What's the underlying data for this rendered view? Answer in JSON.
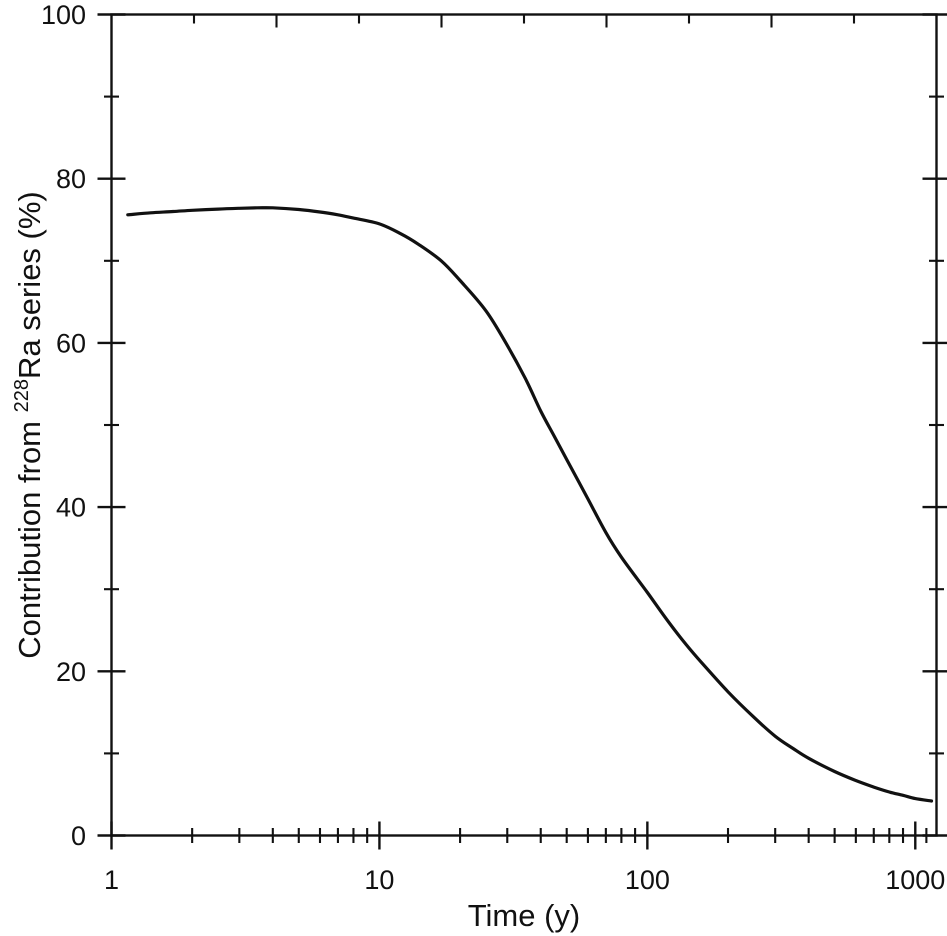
{
  "figure": {
    "background": "#ffffff",
    "ink_color": "#111111"
  },
  "chart_data": {
    "type": "line",
    "title": "",
    "xlabel": "Time (y)",
    "ylabel_parts": {
      "prefix": "Contribution from ",
      "superscript": "228",
      "suffix": "Ra series (%)"
    },
    "x_scale": "log",
    "y_scale": "linear",
    "xlim": [
      1,
      1200
    ],
    "ylim": [
      0,
      100
    ],
    "grid": false,
    "legend_position": "none",
    "x_major_ticks": [
      {
        "value": 1,
        "label": "1"
      },
      {
        "value": 10,
        "label": "10"
      },
      {
        "value": 100,
        "label": "100"
      },
      {
        "value": 1000,
        "label": "1000"
      }
    ],
    "x_minor_ticks": [
      2,
      3,
      4,
      5,
      6,
      7,
      8,
      9,
      20,
      30,
      40,
      50,
      60,
      70,
      80,
      90,
      200,
      300,
      400,
      500,
      600,
      700,
      800,
      900,
      1100
    ],
    "y_major_ticks": [
      {
        "value": 0,
        "label": "0"
      },
      {
        "value": 20,
        "label": "20"
      },
      {
        "value": 40,
        "label": "40"
      },
      {
        "value": 60,
        "label": "60"
      },
      {
        "value": 80,
        "label": "80"
      },
      {
        "value": 100,
        "label": "100"
      }
    ],
    "y_minor_ticks": [
      10,
      30,
      50,
      70,
      90
    ],
    "top_axis": {
      "evenly_spaced_tick_count": 9,
      "style": "alternating-long-short"
    },
    "right_axis": {
      "mirrors_left_ticks": true,
      "labels": false
    },
    "series": [
      {
        "name": "228Ra series contribution",
        "color": "#111111",
        "line_width": 3.2,
        "points": [
          [
            1.15,
            75.6
          ],
          [
            1.4,
            75.85
          ],
          [
            1.7,
            76.0
          ],
          [
            2,
            76.15
          ],
          [
            2.5,
            76.3
          ],
          [
            3,
            76.4
          ],
          [
            3.5,
            76.45
          ],
          [
            4,
            76.45
          ],
          [
            5,
            76.25
          ],
          [
            6,
            75.95
          ],
          [
            7,
            75.6
          ],
          [
            8,
            75.2
          ],
          [
            10,
            74.5
          ],
          [
            12,
            73.3
          ],
          [
            14,
            72.0
          ],
          [
            17,
            70.0
          ],
          [
            20,
            67.6
          ],
          [
            25,
            63.9
          ],
          [
            30,
            59.7
          ],
          [
            35,
            55.7
          ],
          [
            40,
            51.7
          ],
          [
            45,
            48.6
          ],
          [
            50,
            45.8
          ],
          [
            60,
            41.0
          ],
          [
            70,
            36.9
          ],
          [
            80,
            33.9
          ],
          [
            100,
            29.6
          ],
          [
            120,
            26.0
          ],
          [
            140,
            23.2
          ],
          [
            160,
            21.0
          ],
          [
            200,
            17.5
          ],
          [
            250,
            14.4
          ],
          [
            300,
            12.1
          ],
          [
            350,
            10.6
          ],
          [
            400,
            9.4
          ],
          [
            500,
            7.8
          ],
          [
            600,
            6.7
          ],
          [
            700,
            5.9
          ],
          [
            800,
            5.3
          ],
          [
            900,
            4.9
          ],
          [
            1000,
            4.5
          ],
          [
            1150,
            4.2
          ]
        ]
      }
    ]
  }
}
